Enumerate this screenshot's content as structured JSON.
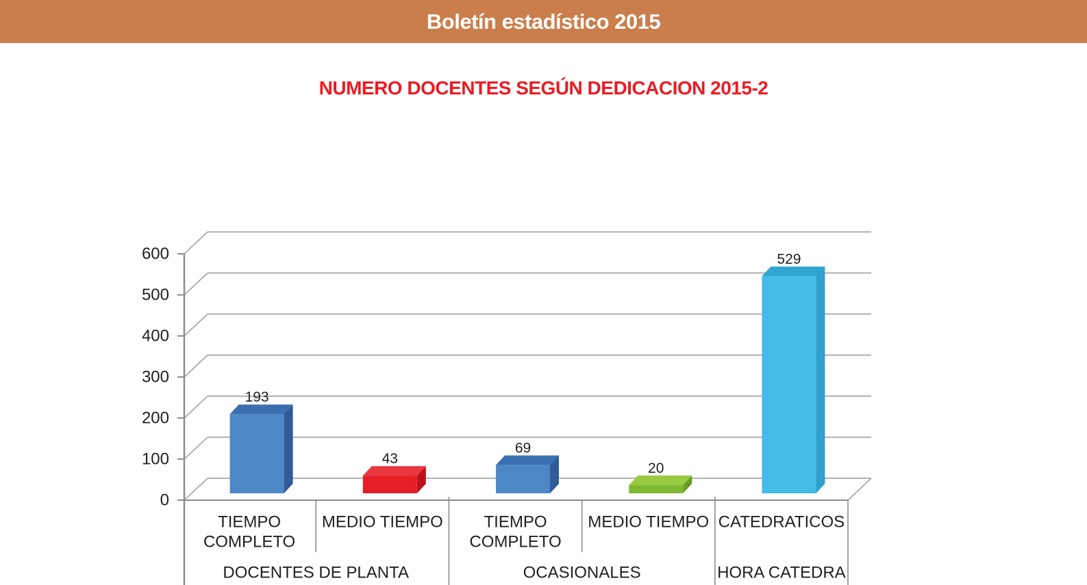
{
  "header": {
    "title": "Boletín estadístico 2015",
    "bg_color": "#CA7E4C",
    "text_color": "#FFFFFF"
  },
  "chart_title": {
    "text": "NUMERO DOCENTES SEGÚN DEDICACION 2015-2",
    "color": "#EC1B23"
  },
  "chart_data": {
    "type": "bar",
    "style": "3d-clustered",
    "title": "NUMERO DOCENTES SEGÚN DEDICACION 2015-2",
    "categories": [
      {
        "label": "TIEMPO COMPLETO",
        "lines": [
          "TIEMPO",
          "COMPLETO"
        ],
        "group": "DOCENTES DE PLANTA"
      },
      {
        "label": "MEDIO TIEMPO",
        "lines": [
          "MEDIO TIEMPO"
        ],
        "group": "DOCENTES DE PLANTA"
      },
      {
        "label": "TIEMPO COMPLETO",
        "lines": [
          "TIEMPO",
          "COMPLETO"
        ],
        "group": "OCASIONALES"
      },
      {
        "label": "MEDIO TIEMPO",
        "lines": [
          "MEDIO TIEMPO"
        ],
        "group": "OCASIONALES"
      },
      {
        "label": "CATEDRATICOS",
        "lines": [
          "CATEDRATICOS"
        ],
        "group": "HORA CATEDRA"
      }
    ],
    "groups": [
      {
        "label": "DOCENTES DE PLANTA",
        "start": 0,
        "end": 1
      },
      {
        "label": "OCASIONALES",
        "start": 2,
        "end": 3
      },
      {
        "label": "HORA CATEDRA",
        "start": 4,
        "end": 4
      }
    ],
    "values": [
      193,
      43,
      69,
      20,
      529
    ],
    "data_labels": [
      "193",
      "43",
      "69",
      "20",
      "529"
    ],
    "bar_colors": [
      {
        "front": "#4E87C6",
        "top": "#3B70B0",
        "side": "#2F5C96"
      },
      {
        "front": "#E61E26",
        "top": "#EA3840",
        "side": "#B9141C"
      },
      {
        "front": "#4E87C6",
        "top": "#3B70B0",
        "side": "#2F5C96"
      },
      {
        "front": "#7FB933",
        "top": "#9ACC42",
        "side": "#669B26"
      },
      {
        "front": "#44BBE8",
        "top": "#2FA5D4",
        "side": "#2F9FCB"
      }
    ],
    "y_ticks": [
      0,
      100,
      200,
      300,
      400,
      500,
      600
    ],
    "ylim": [
      0,
      600
    ],
    "xlabel": "",
    "ylabel": "",
    "grid": true,
    "legend": false,
    "axis_color": "#8C8C8C",
    "grid_color": "#A8A8A8",
    "label_color": "#1F1F1F"
  }
}
